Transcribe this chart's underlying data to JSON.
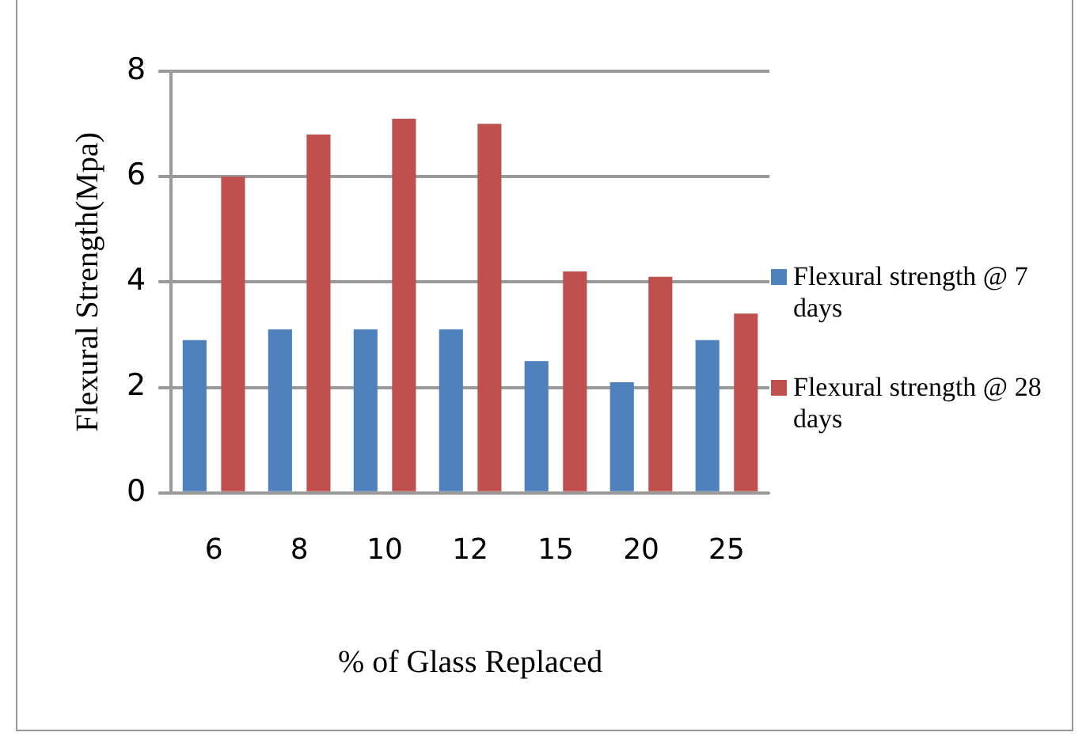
{
  "chart_data": {
    "type": "bar",
    "xlabel": "% of Glass Replaced",
    "ylabel": "Flexural Strength(Mpa)",
    "categories": [
      "6",
      "8",
      "10",
      "12",
      "15",
      "20",
      "25"
    ],
    "series": [
      {
        "name": "Flexural strength @ 7 days",
        "color": "#4f81bd",
        "values": [
          2.9,
          3.1,
          3.1,
          3.1,
          2.5,
          2.1,
          2.9
        ]
      },
      {
        "name": "Flexural strength @ 28 days",
        "color": "#c0504d",
        "values": [
          6.0,
          6.8,
          7.1,
          7.0,
          4.2,
          4.1,
          3.4
        ]
      }
    ],
    "ylim": [
      0,
      8
    ],
    "yticks": [
      0,
      2,
      4,
      6,
      8
    ],
    "grid": "y",
    "legend": "right"
  }
}
